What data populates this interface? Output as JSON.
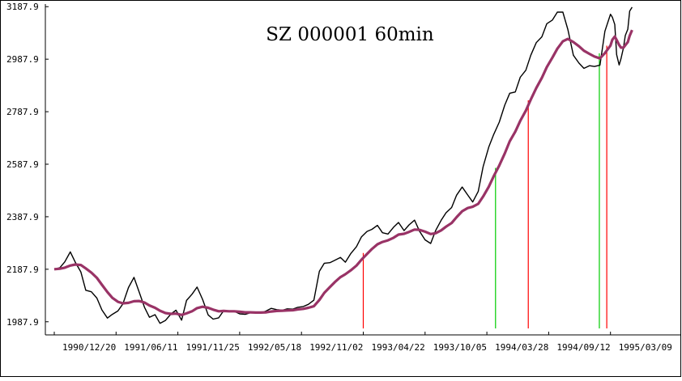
{
  "chart_data": {
    "type": "line",
    "title": "SZ 000001 60min",
    "xlabel": "",
    "ylabel": "",
    "ylim": [
      1937.9,
      3197.9
    ],
    "y_ticks": [
      "1987.9",
      "2187.9",
      "2387.9",
      "2587.9",
      "2787.9",
      "2987.9",
      "3187.9"
    ],
    "x_ticks": [
      "1990/12/20",
      "1991/06/11",
      "1991/11/25",
      "1992/05/18",
      "1992/11/02",
      "1993/04/22",
      "1993/10/05",
      "1994/03/28",
      "1994/09/12",
      "1995/03/09"
    ],
    "grid": false,
    "colors": {
      "price": "#000000",
      "moving_average": "#993366",
      "buy_marker": "#00cc00",
      "sell_marker": "#ff0000"
    },
    "series": [
      {
        "role": "price",
        "x": [
          0,
          0.09,
          0.17,
          0.26,
          0.34,
          0.43,
          0.51,
          0.6,
          0.69,
          0.77,
          0.86,
          0.94,
          1.03,
          1.11,
          1.2,
          1.29,
          1.37,
          1.46,
          1.54,
          1.63,
          1.71,
          1.8,
          1.89,
          1.97,
          2.06,
          2.14,
          2.23,
          2.31,
          2.4,
          2.49,
          2.57,
          2.66,
          2.74,
          2.83,
          2.91,
          3.0,
          3.09,
          3.17,
          3.26,
          3.34,
          3.43,
          3.51,
          3.6,
          3.69,
          3.77,
          3.86,
          3.94,
          4.03,
          4.11,
          4.2,
          4.29,
          4.37,
          4.46,
          4.54,
          4.63,
          4.71,
          4.8,
          4.89,
          4.97,
          5.06,
          5.14,
          5.23,
          5.31,
          5.4,
          5.49,
          5.57,
          5.66,
          5.74,
          5.83,
          5.91,
          6.0,
          6.09,
          6.17,
          6.26,
          6.34,
          6.43,
          6.51,
          6.6,
          6.69,
          6.77,
          6.86,
          6.94,
          7.03,
          7.11,
          7.2,
          7.29,
          7.37,
          7.46,
          7.54,
          7.63,
          7.71,
          7.8,
          7.89,
          7.97,
          8.06,
          8.14,
          8.23,
          8.31,
          8.4,
          8.49,
          8.57,
          8.66,
          8.74,
          8.83,
          8.91,
          9.0,
          9.03,
          9.07,
          9.1,
          9.14,
          9.17,
          9.21,
          9.24,
          9.28,
          9.31,
          9.35
        ],
        "values": [
          2187.9,
          2194,
          2216,
          2254,
          2215,
          2178,
          2108,
          2102,
          2078,
          2033,
          2002,
          2016,
          2029,
          2056,
          2118,
          2157,
          2104,
          2043,
          2005,
          2015,
          1982,
          1993,
          2018,
          2032,
          1994,
          2069,
          2093,
          2120,
          2073,
          2014,
          1998,
          2003,
          2030,
          2027,
          2028,
          2018,
          2016,
          2022,
          2023,
          2021,
          2029,
          2039,
          2034,
          2032,
          2037,
          2036,
          2043,
          2046,
          2054,
          2070,
          2180,
          2211,
          2213,
          2222,
          2233,
          2215,
          2248,
          2274,
          2311,
          2332,
          2340,
          2355,
          2327,
          2322,
          2348,
          2366,
          2335,
          2357,
          2375,
          2333,
          2300,
          2286,
          2335,
          2374,
          2403,
          2423,
          2470,
          2501,
          2471,
          2444,
          2484,
          2579,
          2653,
          2701,
          2748,
          2813,
          2858,
          2863,
          2919,
          2946,
          3003,
          3051,
          3073,
          3123,
          3137,
          3167,
          3167,
          3101,
          3003,
          2973,
          2953,
          2963,
          2960,
          2965,
          3094,
          3159,
          3148,
          3120,
          3005,
          2966,
          2990,
          3031,
          3078,
          3102,
          3171,
          3186
        ]
      },
      {
        "role": "moving_average",
        "x": [
          0,
          0.09,
          0.17,
          0.26,
          0.34,
          0.43,
          0.51,
          0.6,
          0.69,
          0.77,
          0.86,
          0.94,
          1.03,
          1.11,
          1.2,
          1.29,
          1.37,
          1.46,
          1.54,
          1.63,
          1.71,
          1.8,
          1.89,
          1.97,
          2.06,
          2.14,
          2.23,
          2.31,
          2.4,
          2.49,
          2.57,
          2.66,
          2.74,
          2.83,
          2.91,
          3.0,
          3.09,
          3.17,
          3.26,
          3.34,
          3.43,
          3.51,
          3.6,
          3.69,
          3.77,
          3.86,
          3.94,
          4.03,
          4.11,
          4.2,
          4.29,
          4.37,
          4.46,
          4.54,
          4.63,
          4.71,
          4.8,
          4.89,
          4.97,
          5.06,
          5.14,
          5.23,
          5.31,
          5.4,
          5.49,
          5.57,
          5.66,
          5.74,
          5.83,
          5.91,
          6.0,
          6.09,
          6.17,
          6.26,
          6.34,
          6.43,
          6.51,
          6.6,
          6.69,
          6.77,
          6.86,
          6.94,
          7.03,
          7.11,
          7.2,
          7.29,
          7.37,
          7.46,
          7.54,
          7.63,
          7.71,
          7.8,
          7.89,
          7.97,
          8.06,
          8.14,
          8.23,
          8.31,
          8.4,
          8.49,
          8.57,
          8.66,
          8.74,
          8.83,
          8.91,
          9.0,
          9.03,
          9.07,
          9.1,
          9.14,
          9.17,
          9.21,
          9.24,
          9.28,
          9.31,
          9.35
        ],
        "values": [
          2187.9,
          2190,
          2194,
          2202,
          2206,
          2204,
          2191,
          2175,
          2155,
          2129,
          2101,
          2079,
          2064,
          2058,
          2060,
          2066,
          2067,
          2061,
          2050,
          2041,
          2030,
          2021,
          2018,
          2019,
          2014,
          2020,
          2028,
          2040,
          2045,
          2041,
          2034,
          2028,
          2029,
          2028,
          2028,
          2026,
          2024,
          2024,
          2023,
          2023,
          2024,
          2027,
          2029,
          2030,
          2031,
          2032,
          2035,
          2037,
          2041,
          2047,
          2071,
          2098,
          2120,
          2139,
          2158,
          2169,
          2184,
          2202,
          2224,
          2246,
          2265,
          2283,
          2292,
          2298,
          2308,
          2320,
          2323,
          2330,
          2339,
          2338,
          2331,
          2322,
          2325,
          2336,
          2350,
          2364,
          2386,
          2409,
          2421,
          2426,
          2437,
          2465,
          2502,
          2542,
          2583,
          2629,
          2675,
          2712,
          2753,
          2792,
          2834,
          2878,
          2917,
          2958,
          2994,
          3028,
          3056,
          3065,
          3053,
          3037,
          3020,
          3008,
          2998,
          2991,
          3011,
          3040,
          3062,
          3074,
          3061,
          3042,
          3032,
          3032,
          3041,
          3053,
          3077,
          3099
        ]
      }
    ],
    "vertical_markers": [
      {
        "kind": "sell",
        "x": 5.0
      },
      {
        "kind": "buy",
        "x": 7.14
      },
      {
        "kind": "sell",
        "x": 7.67
      },
      {
        "kind": "buy",
        "x": 8.82
      },
      {
        "kind": "sell",
        "x": 8.94
      }
    ]
  }
}
